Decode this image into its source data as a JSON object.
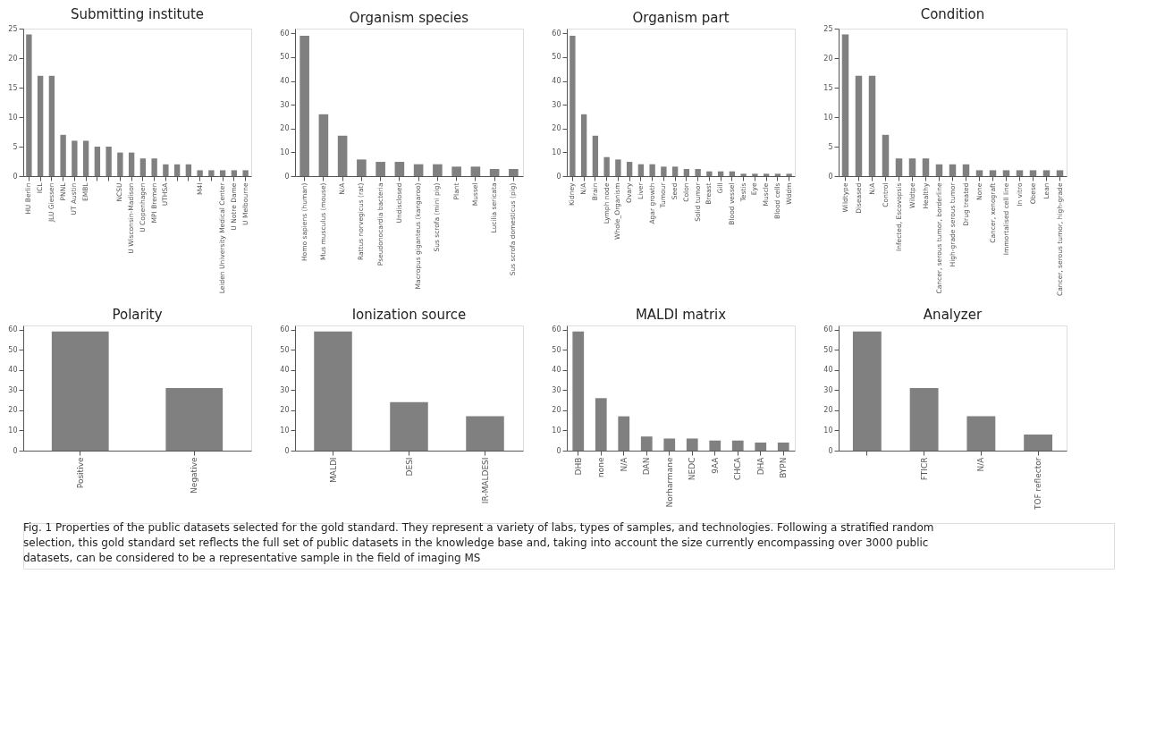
{
  "chart_data": [
    {
      "type": "bar",
      "title": "Submitting institute",
      "categories": [
        "HU Berlin",
        "ICL",
        "JLU Giessen",
        "PNNL",
        "UT Austin",
        "EMBL",
        null,
        null,
        "NCSU",
        "U Wisconsin-Madison",
        "U Copenhagen",
        "MPI Bremen",
        "UTHSA",
        null,
        null,
        "M4I",
        null,
        "Leiden University Medical Center",
        "U Notre Dame",
        "U Melbourne"
      ],
      "values": [
        24,
        17,
        17,
        7,
        6,
        6,
        5,
        5,
        4,
        4,
        3,
        3,
        2,
        2,
        2,
        1,
        1,
        1,
        1,
        1
      ],
      "color": "#808080",
      "ylim": [
        0,
        25
      ],
      "yticks": [
        0,
        5,
        10,
        15,
        20,
        25
      ]
    },
    {
      "type": "bar",
      "title": "Organism species",
      "categories": [
        "Homo sapiens (human)",
        "Mus musculus (mouse)",
        "N/A",
        "Rattus norvegicus (rat)",
        "Pseudonocardia bacteria",
        "Undisclosed",
        "Macropus giganteus (kangaroo)",
        "Sus scrofa (mini pig)",
        "Plant",
        "Mussel",
        "Lucilia sericata",
        "Sus scrofa domesticus (pig)"
      ],
      "values": [
        59,
        26,
        17,
        7,
        6,
        6,
        5,
        5,
        4,
        4,
        3,
        3
      ],
      "color": "#808080",
      "ylim": [
        0,
        62
      ],
      "yticks": [
        0,
        10,
        20,
        30,
        40,
        50,
        60
      ]
    },
    {
      "type": "bar",
      "title": "Organism part",
      "categories": [
        "Kidney",
        "N/A",
        "Brain",
        "Lymph node",
        "Whole_Organism",
        "Ovary",
        "Liver",
        "Agar growth",
        "Tumour",
        "Seed",
        "Colon",
        "Solid tumor",
        "Breast",
        "Gill",
        "Blood vessel",
        "Testis",
        "Eye",
        "Muscle",
        "Blood cells",
        "Wddm"
      ],
      "values": [
        59,
        26,
        17,
        8,
        7,
        6,
        5,
        5,
        4,
        4,
        3,
        3,
        2,
        2,
        2,
        1,
        1,
        1,
        1,
        1
      ],
      "color": "#808080",
      "ylim": [
        0,
        62
      ],
      "yticks": [
        0,
        10,
        20,
        30,
        40,
        50,
        60
      ]
    },
    {
      "type": "bar",
      "title": "Condition",
      "categories": [
        "Wildtype",
        "Diseased",
        "N/A",
        "Control",
        "Infected, Escovopsis",
        "Wildtpe",
        "Healthy",
        "Cancer, serous tumor, borderline",
        "High-grade serous tumor",
        "Drug treated",
        "None",
        "Cancer, xenograft",
        "Immortalised cell line",
        "In vitro",
        "Obese",
        "Lean",
        "Cancer, serous tumor, high-grade"
      ],
      "values": [
        24,
        17,
        17,
        7,
        3,
        3,
        3,
        2,
        2,
        2,
        1,
        1,
        1,
        1,
        1,
        1,
        1
      ],
      "color": "#808080",
      "ylim": [
        0,
        25
      ],
      "yticks": [
        0,
        5,
        10,
        15,
        20,
        25
      ]
    },
    {
      "type": "bar",
      "title": "Polarity",
      "categories": [
        "Positive",
        "Negative"
      ],
      "values": [
        59,
        31
      ],
      "color": "#808080",
      "ylim": [
        0,
        62
      ],
      "yticks": [
        0,
        10,
        20,
        30,
        40,
        50,
        60
      ]
    },
    {
      "type": "bar",
      "title": "Ionization source",
      "categories": [
        "MALDI",
        "DESI",
        "IR-MALDESI"
      ],
      "values": [
        59,
        24,
        17
      ],
      "color": "#808080",
      "ylim": [
        0,
        62
      ],
      "yticks": [
        0,
        10,
        20,
        30,
        40,
        50,
        60
      ]
    },
    {
      "type": "bar",
      "title": "MALDI matrix",
      "categories": [
        "DHB",
        "none",
        "N/A",
        "DAN",
        "Norharmane",
        "NEDC",
        "9AA",
        "CHCA",
        "DHA",
        "BYPN"
      ],
      "values": [
        59,
        26,
        17,
        7,
        6,
        6,
        5,
        5,
        4,
        4
      ],
      "color": "#808080",
      "ylim": [
        0,
        62
      ],
      "yticks": [
        0,
        10,
        20,
        30,
        40,
        50,
        60
      ]
    },
    {
      "type": "bar",
      "title": "Analyzer",
      "categories": [
        null,
        "FTICR",
        "N/A",
        "TOF reflector"
      ],
      "values": [
        59,
        31,
        17,
        8
      ],
      "color": "#808080",
      "ylim": [
        0,
        62
      ],
      "yticks": [
        0,
        10,
        20,
        30,
        40,
        50,
        60
      ],
      "annotations": [
        "Fig. 1 Properties of the public datasets selected for the gold standard. They represent a variety of labs, types of samples, and technologies. Following a stratified random selection, this gold standard set reflects the full set of public datasets in the knowledge base and, taking into account the size currently encompassing over 3000 public datasets, can be considered to be a representative sample in the field of imaging MS"
      ]
    }
  ]
}
